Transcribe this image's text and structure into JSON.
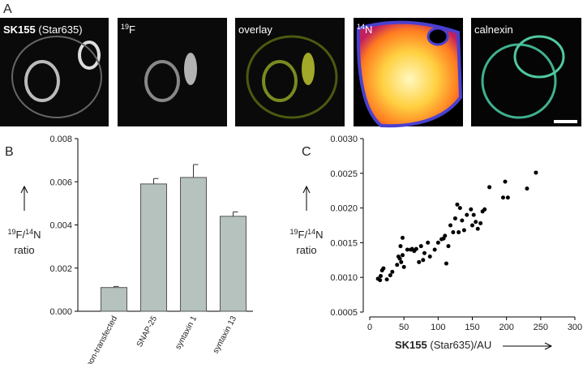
{
  "panel_a": {
    "letter": "A",
    "images": [
      {
        "parts": [
          "SK155",
          " (Star635)"
        ]
      },
      {
        "parts": [
          "19",
          "F"
        ]
      },
      {
        "parts": [
          "overlay"
        ]
      },
      {
        "parts": [
          "14",
          "N"
        ]
      },
      {
        "parts": [
          "calnexin"
        ]
      }
    ]
  },
  "chart_data": [
    {
      "type": "bar",
      "letter": "B",
      "y_label": [
        "19",
        "F/",
        "14",
        "N",
        "ratio"
      ],
      "categories": [
        "non-transfected",
        "SNAP-25",
        "syntaxin 1",
        "syntaxin 13"
      ],
      "values": [
        0.0011,
        0.0059,
        0.0062,
        0.0044
      ],
      "errors": [
        5e-05,
        0.00025,
        0.0006,
        0.0002
      ],
      "color": "#b5c2bd",
      "ylim": [
        0,
        0.008
      ],
      "yticks": [
        {
          "value": 0,
          "label": "0.000"
        },
        0.002,
        0.004,
        0.006,
        0.008
      ]
    },
    {
      "type": "scatter",
      "letter": "C",
      "y_label": [
        "19",
        "F/",
        "14",
        "N",
        "ratio"
      ],
      "x_label": [
        "SK155",
        " (Star635)/AU"
      ],
      "color": "#000000",
      "x": [
        12,
        15,
        16,
        18,
        20,
        25,
        30,
        33,
        40,
        42,
        44,
        45,
        46,
        48,
        48,
        50,
        55,
        60,
        62,
        65,
        68,
        72,
        75,
        78,
        80,
        85,
        88,
        95,
        100,
        105,
        108,
        110,
        112,
        115,
        118,
        122,
        125,
        128,
        130,
        132,
        135,
        138,
        142,
        148,
        150,
        152,
        155,
        158,
        162,
        165,
        168,
        175,
        195,
        198,
        202,
        230,
        243
      ],
      "values": [
        0.00098,
        0.00096,
        0.00102,
        0.0011,
        0.00113,
        0.00097,
        0.00103,
        0.00108,
        0.00118,
        0.0013,
        0.00127,
        0.00145,
        0.00122,
        0.00132,
        0.00157,
        0.00115,
        0.0014,
        0.0014,
        0.00141,
        0.00138,
        0.00141,
        0.00122,
        0.00145,
        0.00125,
        0.00135,
        0.0015,
        0.0013,
        0.0014,
        0.0015,
        0.00155,
        0.00156,
        0.0016,
        0.0012,
        0.00145,
        0.00175,
        0.00165,
        0.00185,
        0.00205,
        0.00165,
        0.002,
        0.00182,
        0.00168,
        0.0019,
        0.00198,
        0.00175,
        0.0019,
        0.0018,
        0.0017,
        0.00178,
        0.00195,
        0.00198,
        0.0023,
        0.00215,
        0.00238,
        0.00215,
        0.00228,
        0.00251
      ],
      "xlim": [
        0,
        300
      ],
      "xticks": [
        0,
        50,
        100,
        150,
        200,
        250,
        300
      ],
      "ylim": [
        0.0005,
        0.003
      ],
      "yticks": [
        0.0005,
        {
          "value": 0.001,
          "label": "0.0010"
        },
        0.0015,
        {
          "value": 0.002,
          "label": "0.0020"
        },
        0.0025,
        {
          "value": 0.003,
          "label": "0.0030"
        }
      ]
    }
  ]
}
